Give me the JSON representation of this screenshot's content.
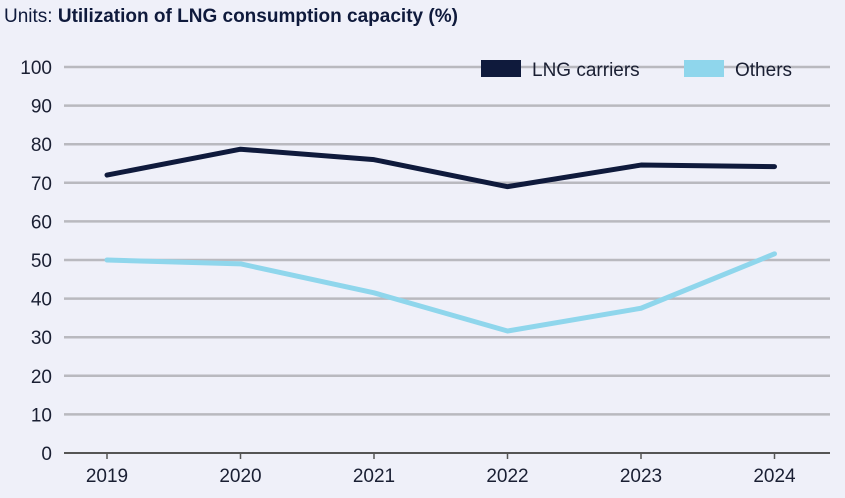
{
  "chart_data": {
    "type": "line",
    "units_label": "Units:",
    "title": "Utilization of LNG consumption capacity (%)",
    "categories": [
      "2019",
      "2020",
      "2021",
      "2022",
      "2023",
      "2024"
    ],
    "ylim": [
      0,
      100
    ],
    "yticks": [
      0,
      10,
      20,
      30,
      40,
      50,
      60,
      70,
      80,
      90,
      100
    ],
    "grid": true,
    "legend": "top-right",
    "series": [
      {
        "name": "LNG carriers",
        "color": "#0f1a3c",
        "values": [
          72,
          78.7,
          76,
          69,
          74.6,
          74.2
        ]
      },
      {
        "name": "Others",
        "color": "#8fd6ec",
        "values": [
          50,
          49,
          41.5,
          31.6,
          37.5,
          51.6
        ]
      }
    ]
  }
}
